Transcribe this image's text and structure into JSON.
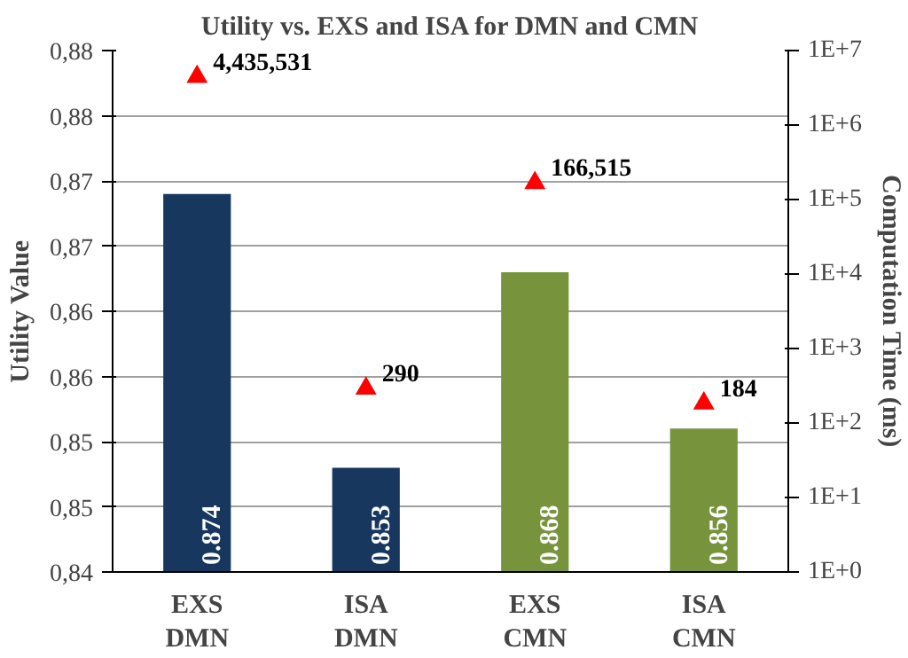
{
  "chart_data": {
    "type": "bar",
    "title": "Utility vs. EXS and ISA for DMN and CMN",
    "ylabel": "Utility Value",
    "y2label": "Computation Time (ms)",
    "categories": [
      "EXS\nDMN",
      "ISA\nDMN",
      "EXS\nCMN",
      "ISA\nCMN"
    ],
    "series": [
      {
        "colors": [
          "#17375e",
          "#17375e",
          "#77933c",
          "#77933c"
        ],
        "values": [
          0.874,
          0.853,
          0.868,
          0.856
        ],
        "value_labels": [
          "0.874",
          "0.853",
          "0.868",
          "0.856"
        ]
      },
      {
        "type": "scatter",
        "axis": "y2",
        "color": "#ff0000",
        "marker": "triangle",
        "values": [
          4435531,
          290,
          166515,
          184
        ],
        "value_labels": [
          "4,435,531",
          "290",
          "166,515",
          "184"
        ]
      }
    ],
    "ylim": [
      0.845,
      0.885
    ],
    "yticks": [
      {
        "value": 0.845,
        "label": "0,84"
      },
      {
        "value": 0.85,
        "label": "0,85"
      },
      {
        "value": 0.855,
        "label": "0,85"
      },
      {
        "value": 0.86,
        "label": "0,86"
      },
      {
        "value": 0.865,
        "label": "0,86"
      },
      {
        "value": 0.87,
        "label": "0,87"
      },
      {
        "value": 0.875,
        "label": "0,87"
      },
      {
        "value": 0.88,
        "label": "0,88"
      },
      {
        "value": 0.885,
        "label": "0,88"
      }
    ],
    "y2lim": [
      1,
      10000000
    ],
    "y2ticks": [
      {
        "value": 1,
        "label": "1E+0"
      },
      {
        "value": 10,
        "label": "1E+1"
      },
      {
        "value": 100,
        "label": "1E+2"
      },
      {
        "value": 1000,
        "label": "1E+3"
      },
      {
        "value": 10000,
        "label": "1E+4"
      },
      {
        "value": 100000,
        "label": "1E+5"
      },
      {
        "value": 1000000,
        "label": "1E+6"
      },
      {
        "value": 10000000,
        "label": "1E+7"
      }
    ],
    "log": "y2",
    "grid": "y"
  }
}
